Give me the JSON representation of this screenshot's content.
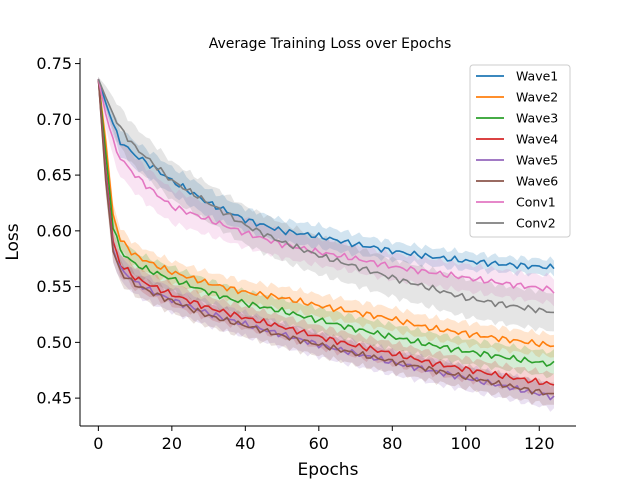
{
  "chart_data": {
    "type": "line",
    "title": "Average Training Loss over Epochs",
    "xlabel": "Epochs",
    "ylabel": "Loss",
    "xlim": [
      -5,
      130
    ],
    "ylim": [
      0.425,
      0.755
    ],
    "xticks": [
      0,
      20,
      40,
      60,
      80,
      100,
      120
    ],
    "yticks": [
      0.45,
      0.5,
      0.55,
      0.6,
      0.65,
      0.7,
      0.75
    ],
    "ytick_labels": [
      "0.45",
      "0.50",
      "0.55",
      "0.60",
      "0.65",
      "0.70",
      "0.75"
    ],
    "grid": false,
    "legend_position": "top-right",
    "shaded_band": "std",
    "series": [
      {
        "name": "Wave1",
        "color": "#1f77b4",
        "x": [
          0,
          2,
          4,
          6,
          10,
          15,
          20,
          30,
          40,
          50,
          60,
          70,
          80,
          90,
          100,
          110,
          124
        ],
        "y": [
          0.736,
          0.715,
          0.695,
          0.68,
          0.668,
          0.657,
          0.645,
          0.625,
          0.61,
          0.6,
          0.595,
          0.588,
          0.582,
          0.577,
          0.573,
          0.57,
          0.567
        ],
        "spread": [
          0.002,
          0.006,
          0.01,
          0.012,
          0.012,
          0.012,
          0.012,
          0.012,
          0.01,
          0.01,
          0.01,
          0.009,
          0.008,
          0.008,
          0.008,
          0.007,
          0.007
        ]
      },
      {
        "name": "Wave2",
        "color": "#ff7f0e",
        "x": [
          0,
          2,
          4,
          6,
          10,
          15,
          20,
          30,
          40,
          50,
          60,
          70,
          80,
          90,
          100,
          110,
          124
        ],
        "y": [
          0.736,
          0.68,
          0.615,
          0.592,
          0.578,
          0.57,
          0.563,
          0.553,
          0.545,
          0.54,
          0.533,
          0.527,
          0.521,
          0.513,
          0.508,
          0.503,
          0.497
        ],
        "spread": [
          0.002,
          0.012,
          0.01,
          0.01,
          0.01,
          0.01,
          0.01,
          0.01,
          0.01,
          0.01,
          0.01,
          0.01,
          0.01,
          0.01,
          0.01,
          0.01,
          0.01
        ]
      },
      {
        "name": "Wave3",
        "color": "#2ca02c",
        "x": [
          0,
          2,
          4,
          6,
          10,
          15,
          20,
          30,
          40,
          50,
          60,
          70,
          80,
          90,
          100,
          110,
          124
        ],
        "y": [
          0.736,
          0.67,
          0.605,
          0.582,
          0.57,
          0.563,
          0.557,
          0.545,
          0.535,
          0.528,
          0.52,
          0.512,
          0.505,
          0.498,
          0.492,
          0.487,
          0.48
        ],
        "spread": [
          0.002,
          0.012,
          0.011,
          0.011,
          0.011,
          0.011,
          0.011,
          0.011,
          0.011,
          0.011,
          0.011,
          0.011,
          0.011,
          0.011,
          0.011,
          0.011,
          0.011
        ]
      },
      {
        "name": "Wave4",
        "color": "#d62728",
        "x": [
          0,
          2,
          4,
          6,
          10,
          15,
          20,
          30,
          40,
          50,
          60,
          70,
          80,
          90,
          100,
          110,
          124
        ],
        "y": [
          0.736,
          0.655,
          0.59,
          0.57,
          0.558,
          0.55,
          0.543,
          0.531,
          0.522,
          0.514,
          0.505,
          0.497,
          0.49,
          0.482,
          0.476,
          0.47,
          0.462
        ],
        "spread": [
          0.002,
          0.012,
          0.01,
          0.01,
          0.01,
          0.01,
          0.01,
          0.01,
          0.01,
          0.01,
          0.01,
          0.01,
          0.01,
          0.01,
          0.01,
          0.01,
          0.01
        ]
      },
      {
        "name": "Wave5",
        "color": "#9467bd",
        "x": [
          0,
          2,
          4,
          6,
          10,
          15,
          20,
          30,
          40,
          50,
          60,
          70,
          80,
          90,
          100,
          110,
          124
        ],
        "y": [
          0.736,
          0.65,
          0.585,
          0.566,
          0.554,
          0.545,
          0.538,
          0.526,
          0.516,
          0.507,
          0.498,
          0.49,
          0.482,
          0.475,
          0.468,
          0.461,
          0.451
        ],
        "spread": [
          0.002,
          0.012,
          0.011,
          0.011,
          0.011,
          0.011,
          0.011,
          0.011,
          0.011,
          0.011,
          0.011,
          0.011,
          0.011,
          0.011,
          0.011,
          0.011,
          0.011
        ]
      },
      {
        "name": "Wave6",
        "color": "#8c564b",
        "x": [
          0,
          2,
          4,
          6,
          10,
          15,
          20,
          30,
          40,
          50,
          60,
          70,
          80,
          90,
          100,
          110,
          124
        ],
        "y": [
          0.736,
          0.645,
          0.582,
          0.563,
          0.552,
          0.544,
          0.537,
          0.524,
          0.515,
          0.506,
          0.498,
          0.49,
          0.483,
          0.476,
          0.469,
          0.462,
          0.453
        ],
        "spread": [
          0.002,
          0.012,
          0.01,
          0.01,
          0.01,
          0.01,
          0.01,
          0.01,
          0.01,
          0.01,
          0.01,
          0.01,
          0.01,
          0.01,
          0.01,
          0.01,
          0.01
        ]
      },
      {
        "name": "Conv1",
        "color": "#e377c2",
        "x": [
          0,
          2,
          4,
          6,
          10,
          15,
          20,
          30,
          40,
          50,
          60,
          70,
          80,
          90,
          100,
          110,
          124
        ],
        "y": [
          0.736,
          0.705,
          0.68,
          0.665,
          0.65,
          0.635,
          0.622,
          0.61,
          0.598,
          0.588,
          0.581,
          0.575,
          0.568,
          0.563,
          0.558,
          0.553,
          0.547
        ],
        "spread": [
          0.002,
          0.012,
          0.015,
          0.016,
          0.016,
          0.016,
          0.015,
          0.014,
          0.013,
          0.012,
          0.012,
          0.012,
          0.012,
          0.012,
          0.012,
          0.012,
          0.012
        ]
      },
      {
        "name": "Conv2",
        "color": "#7f7f7f",
        "x": [
          0,
          2,
          4,
          6,
          10,
          15,
          20,
          30,
          40,
          50,
          60,
          70,
          80,
          90,
          100,
          110,
          124
        ],
        "y": [
          0.736,
          0.72,
          0.705,
          0.692,
          0.675,
          0.66,
          0.645,
          0.625,
          0.605,
          0.59,
          0.578,
          0.568,
          0.558,
          0.549,
          0.54,
          0.534,
          0.527
        ],
        "spread": [
          0.002,
          0.01,
          0.015,
          0.018,
          0.018,
          0.018,
          0.017,
          0.017,
          0.017,
          0.017,
          0.017,
          0.017,
          0.017,
          0.017,
          0.017,
          0.017,
          0.017
        ]
      }
    ]
  }
}
